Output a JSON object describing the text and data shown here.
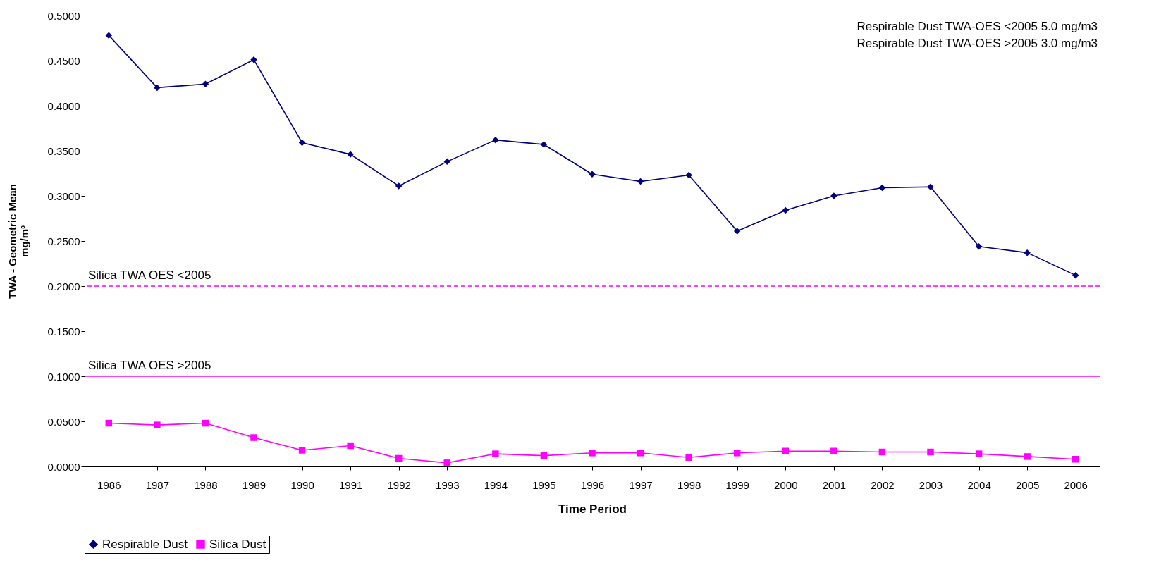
{
  "chart_data": {
    "type": "line",
    "xlabel": "Time Period",
    "ylabel": "TWA - Geometric Mean\nmg/m³",
    "categories": [
      "1986",
      "1987",
      "1988",
      "1989",
      "1990",
      "1991",
      "1992",
      "1993",
      "1994",
      "1995",
      "1996",
      "1997",
      "1998",
      "1999",
      "2000",
      "2001",
      "2002",
      "2003",
      "2004",
      "2005",
      "2006"
    ],
    "series": [
      {
        "name": "Respirable Dust",
        "color": "#000080",
        "marker": "diamond",
        "values": [
          0.478,
          0.42,
          0.424,
          0.451,
          0.359,
          0.346,
          0.311,
          0.338,
          0.362,
          0.357,
          0.324,
          0.316,
          0.323,
          0.261,
          0.284,
          0.3,
          0.309,
          0.31,
          0.244,
          0.237,
          0.212
        ]
      },
      {
        "name": "Silica Dust",
        "color": "#ff00ff",
        "marker": "square",
        "values": [
          0.048,
          0.046,
          0.048,
          0.032,
          0.018,
          0.023,
          0.009,
          0.004,
          0.014,
          0.012,
          0.015,
          0.015,
          0.01,
          0.015,
          0.017,
          0.017,
          0.016,
          0.016,
          0.014,
          0.011,
          0.008
        ]
      }
    ],
    "ylim": [
      0,
      0.5
    ],
    "yticks": [
      {
        "value": 0,
        "label": "0.0000"
      },
      {
        "value": 0.05,
        "label": "0.0500"
      },
      {
        "value": 0.1,
        "label": "0.1000"
      },
      {
        "value": 0.15,
        "label": "0.1500"
      },
      {
        "value": 0.2,
        "label": "0.2000"
      },
      {
        "value": 0.25,
        "label": "0.2500"
      },
      {
        "value": 0.3,
        "label": "0.3000"
      },
      {
        "value": 0.35,
        "label": "0.3500"
      },
      {
        "value": 0.4,
        "label": "0.4000"
      },
      {
        "value": 0.45,
        "label": "0.4500"
      },
      {
        "value": 0.5,
        "label": "0.5000"
      }
    ],
    "ref_lines": [
      {
        "axis": "y",
        "value": 0.2,
        "label": "Silica TWA OES <2005",
        "color": "#ff00ff",
        "line_style": "dashed"
      },
      {
        "axis": "y",
        "value": 0.1,
        "label": "Silica TWA OES >2005",
        "color": "#ff00ff",
        "line_style": "solid"
      }
    ],
    "annotations": [
      "Respirable Dust TWA-OES <2005 5.0 mg/m3",
      "Respirable Dust TWA-OES >2005 3.0 mg/m3"
    ],
    "grid": false,
    "legend": "bottom",
    "line_style": "solid"
  }
}
